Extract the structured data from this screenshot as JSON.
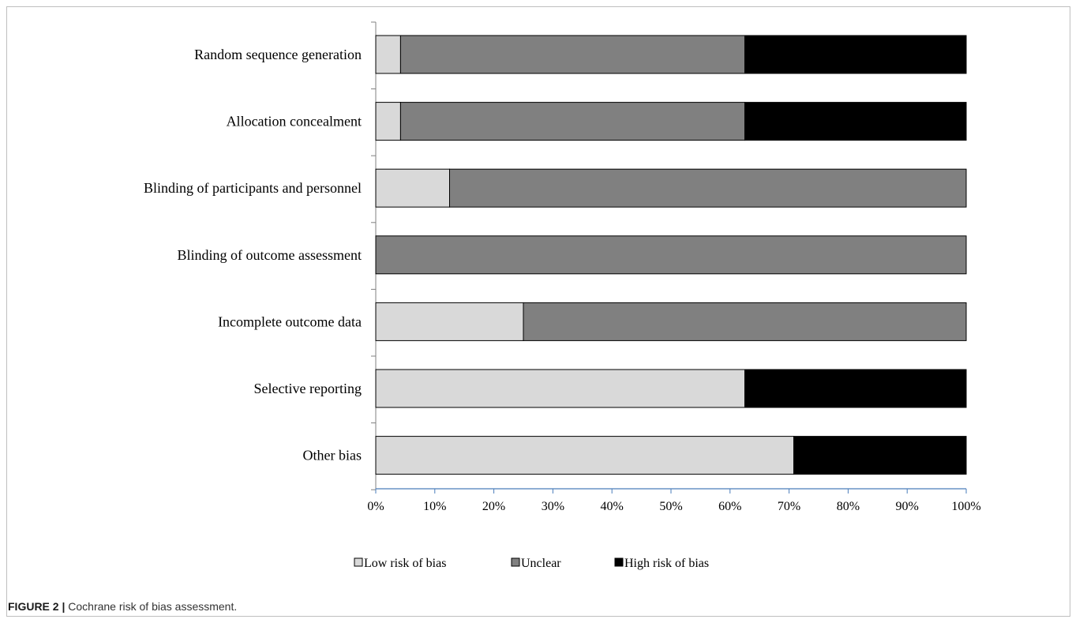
{
  "chart_data": {
    "type": "bar",
    "orientation": "horizontal",
    "stacked": true,
    "categories": [
      "Random sequence generation",
      "Allocation concealment",
      "Blinding of participants and personnel",
      "Blinding of outcome assessment",
      "Incomplete outcome data",
      "Selective reporting",
      "Other bias"
    ],
    "series": [
      {
        "name": "Low risk of bias",
        "color": "#d9d9d9",
        "values": [
          4.2,
          4.2,
          12.5,
          0,
          25,
          62.5,
          70.8
        ]
      },
      {
        "name": "Unclear",
        "color": "#808080",
        "values": [
          58.3,
          58.3,
          87.5,
          100,
          75,
          0,
          0
        ]
      },
      {
        "name": "High risk of bias",
        "color": "#000000",
        "values": [
          37.5,
          37.5,
          0,
          0,
          0,
          37.5,
          29.2
        ]
      }
    ],
    "xlim": [
      0,
      100
    ],
    "xticks": [
      "0%",
      "10%",
      "20%",
      "30%",
      "40%",
      "50%",
      "60%",
      "70%",
      "80%",
      "90%",
      "100%"
    ],
    "legend_position": "bottom",
    "grid": false
  },
  "caption": {
    "label": "FIGURE 2 |",
    "text": " Cochrane risk of bias assessment."
  }
}
